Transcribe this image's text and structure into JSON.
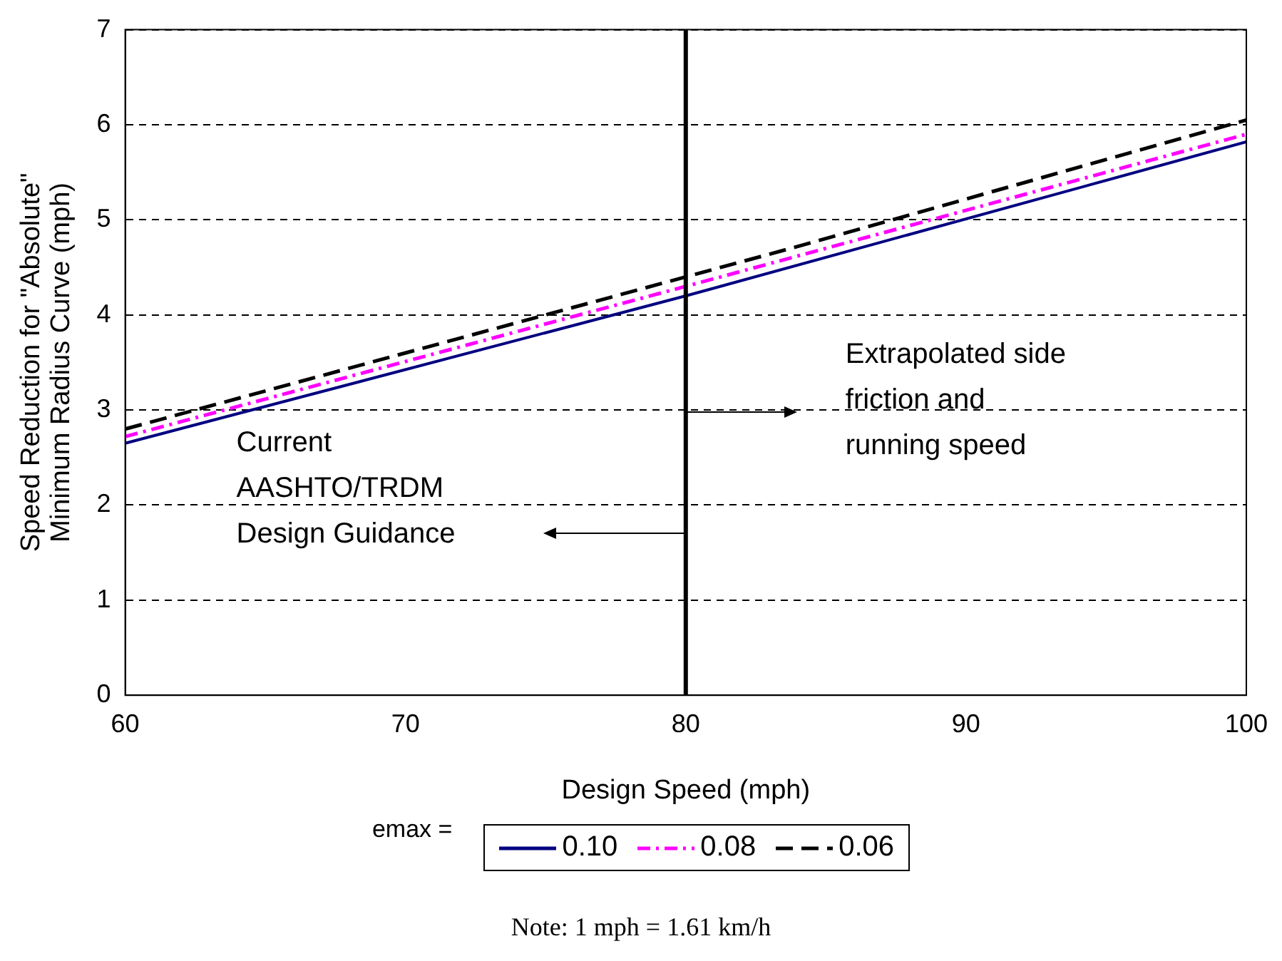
{
  "chart_data": {
    "type": "line",
    "xlabel": "Design Speed (mph)",
    "ylabel": "Speed Reduction for \"Absolute\"\nMinimum Radius Curve (mph)",
    "legend_title": "emax =",
    "legend": "bottom",
    "grid": "y",
    "marker": "none",
    "xlim": [
      60,
      100
    ],
    "xticks": [
      60,
      70,
      80,
      90,
      100
    ],
    "ylim": [
      0,
      7
    ],
    "yticks": [
      0,
      1,
      2,
      3,
      4,
      5,
      6,
      7
    ],
    "series": [
      {
        "name": "0.10",
        "color": "#000080",
        "line_style": "solid",
        "x": [
          60,
          80,
          100
        ],
        "values": [
          2.65,
          4.2,
          5.82
        ]
      },
      {
        "name": "0.08",
        "color": "#ff00ff",
        "line_style": "dashed",
        "x": [
          60,
          80,
          100
        ],
        "values": [
          2.72,
          4.3,
          5.9
        ]
      },
      {
        "name": "0.06",
        "color": "#000000",
        "line_style": "dashed",
        "x": [
          60,
          80,
          84,
          100
        ],
        "values": [
          2.8,
          4.4,
          4.72,
          6.05
        ]
      }
    ],
    "ref_lines": [
      {
        "axis": "x",
        "value": 80,
        "color": "#000000",
        "line_style": "solid"
      }
    ],
    "annotations": [
      "Extrapolated side\nfriction and\nrunning speed",
      "Current\nAASHTO/TRDM\nDesign Guidance",
      "Note: 1 mph = 1.61 km/h"
    ]
  }
}
